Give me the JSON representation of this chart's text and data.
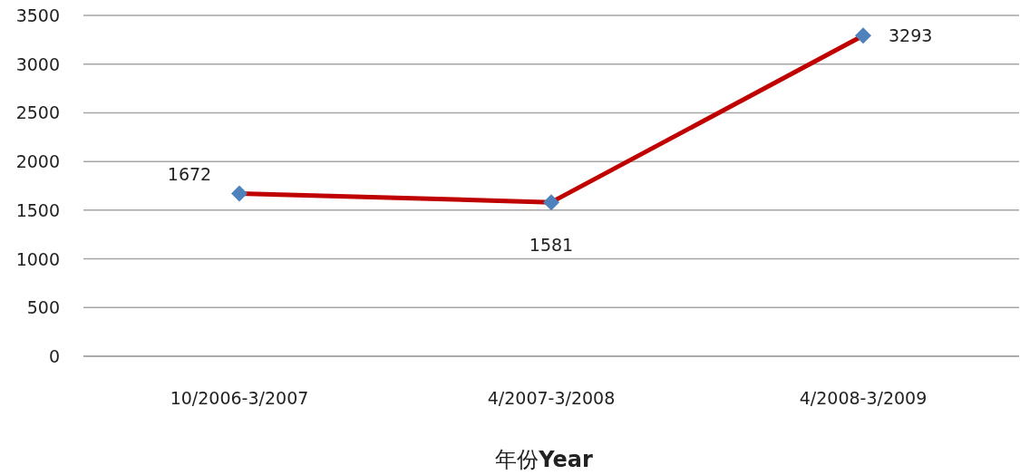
{
  "chart_data": {
    "type": "line",
    "xlabel": "年份**Year**",
    "categories": [
      "10/2006-3/2007",
      "4/2007-3/2008",
      "4/2008-3/2009"
    ],
    "series": [
      {
        "color": "#c00000",
        "values": [
          1672,
          1581,
          3293
        ]
      }
    ],
    "marker": "diamond",
    "data_labels": true,
    "ylim": [
      0,
      3500
    ],
    "yticks": [
      0,
      500,
      1000,
      1500,
      2000,
      2500,
      3000,
      3500
    ],
    "grid": "y"
  }
}
